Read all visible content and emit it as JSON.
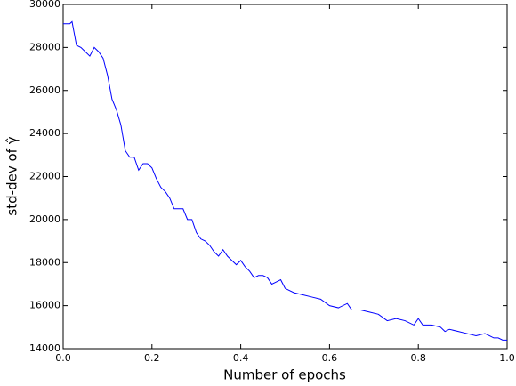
{
  "chart_data": {
    "type": "line",
    "xlabel": "Number of epochs",
    "ylabel": "std-dev of γ̂",
    "x": [
      0,
      0.015,
      0.02,
      0.03,
      0.04,
      0.05,
      0.06,
      0.07,
      0.08,
      0.09,
      0.1,
      0.11,
      0.12,
      0.13,
      0.14,
      0.15,
      0.16,
      0.17,
      0.18,
      0.19,
      0.2,
      0.21,
      0.22,
      0.23,
      0.24,
      0.25,
      0.26,
      0.27,
      0.28,
      0.29,
      0.3,
      0.31,
      0.32,
      0.33,
      0.34,
      0.35,
      0.36,
      0.37,
      0.38,
      0.39,
      0.4,
      0.41,
      0.42,
      0.43,
      0.44,
      0.45,
      0.46,
      0.47,
      0.48,
      0.49,
      0.5,
      0.52,
      0.54,
      0.56,
      0.58,
      0.6,
      0.62,
      0.64,
      0.65,
      0.67,
      0.69,
      0.71,
      0.73,
      0.75,
      0.77,
      0.79,
      0.8,
      0.81,
      0.83,
      0.85,
      0.86,
      0.87,
      0.89,
      0.91,
      0.93,
      0.95,
      0.96,
      0.97,
      0.98,
      0.99,
      1.0
    ],
    "series": [
      {
        "name": "std-dev",
        "color": "#0000ff",
        "values": [
          29100,
          29100,
          29200,
          28100,
          28000,
          27800,
          27600,
          28000,
          27800,
          27500,
          26700,
          25600,
          25100,
          24400,
          23200,
          22900,
          22900,
          22300,
          22600,
          22600,
          22400,
          21900,
          21500,
          21300,
          21000,
          20500,
          20500,
          20500,
          20000,
          20000,
          19400,
          19100,
          19000,
          18800,
          18500,
          18300,
          18600,
          18300,
          18100,
          17900,
          18100,
          17800,
          17600,
          17300,
          17400,
          17400,
          17300,
          17000,
          17100,
          17200,
          16800,
          16600,
          16500,
          16400,
          16300,
          16000,
          15900,
          16100,
          15800,
          15800,
          15700,
          15600,
          15300,
          15400,
          15300,
          15100,
          15400,
          15100,
          15100,
          15000,
          14800,
          14900,
          14800,
          14700,
          14600,
          14700,
          14600,
          14500,
          14500,
          14400,
          14400
        ]
      }
    ],
    "xlim": [
      0,
      1
    ],
    "xticks": [
      {
        "value": 0,
        "label": "0.0"
      },
      0.2,
      0.4,
      0.6,
      0.8,
      {
        "value": 1,
        "label": "1.0"
      }
    ],
    "ylim": [
      14000,
      30000
    ],
    "yticks": [
      14000,
      16000,
      18000,
      20000,
      22000,
      24000,
      26000,
      28000,
      30000
    ]
  }
}
